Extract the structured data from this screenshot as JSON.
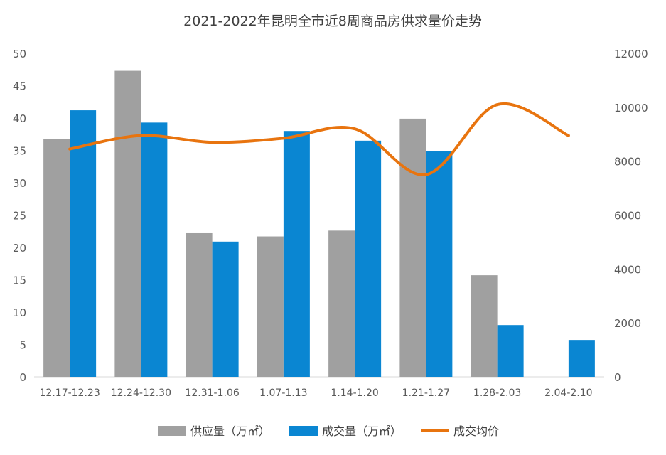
{
  "chart_data": {
    "type": "bar",
    "title": "2021-2022年昆明全市近8周商品房供求量价走势",
    "categories": [
      "12.17-12.23",
      "12.24-12.30",
      "12.31-1.06",
      "1.07-1.13",
      "1.14-1.20",
      "1.21-1.27",
      "1.28-2.03",
      "2.04-2.10"
    ],
    "series": [
      {
        "name": "供应量（万㎡）",
        "kind": "bar",
        "axis": "left",
        "color": "#a0a0a0",
        "values": [
          36.8,
          47.3,
          22.2,
          21.7,
          22.6,
          39.9,
          15.7,
          0
        ]
      },
      {
        "name": "成交量（万㎡）",
        "kind": "bar",
        "axis": "left",
        "color": "#0a86d2",
        "values": [
          41.2,
          39.3,
          20.9,
          38.0,
          36.5,
          34.9,
          8.0,
          5.7
        ]
      },
      {
        "name": "成交均价",
        "kind": "line",
        "axis": "right",
        "color": "#e8740f",
        "values": [
          8450,
          8950,
          8700,
          8850,
          9200,
          7500,
          10100,
          8950
        ]
      }
    ],
    "y_left": {
      "min": 0,
      "max": 50,
      "ticks": [
        0,
        5,
        10,
        15,
        20,
        25,
        30,
        35,
        40,
        45,
        50
      ]
    },
    "y_right": {
      "min": 0,
      "max": 12000,
      "ticks": [
        0,
        2000,
        4000,
        6000,
        8000,
        10000,
        12000
      ]
    },
    "legend_position": "bottom",
    "grid": false
  }
}
